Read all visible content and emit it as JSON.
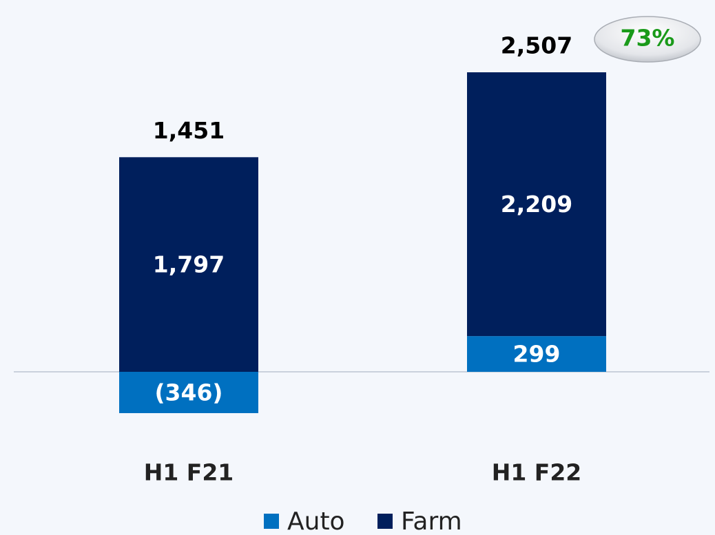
{
  "chart_data": {
    "type": "bar",
    "stacked": true,
    "categories": [
      "H1 F21",
      "H1 F22"
    ],
    "series": [
      {
        "name": "Auto",
        "color": "#0070c0",
        "values": [
          -346,
          299
        ],
        "value_labels": [
          "(346)",
          "299"
        ]
      },
      {
        "name": "Farm",
        "color": "#001f5c",
        "values": [
          1797,
          2209
        ],
        "value_labels": [
          "1,797",
          "2,209"
        ]
      }
    ],
    "totals": {
      "values": [
        1451,
        2507
      ],
      "value_labels": [
        "1,451",
        "2,507"
      ]
    },
    "annotations": [
      "73%"
    ],
    "annotation_color": "#1a9a1a",
    "legend": "bottom"
  }
}
